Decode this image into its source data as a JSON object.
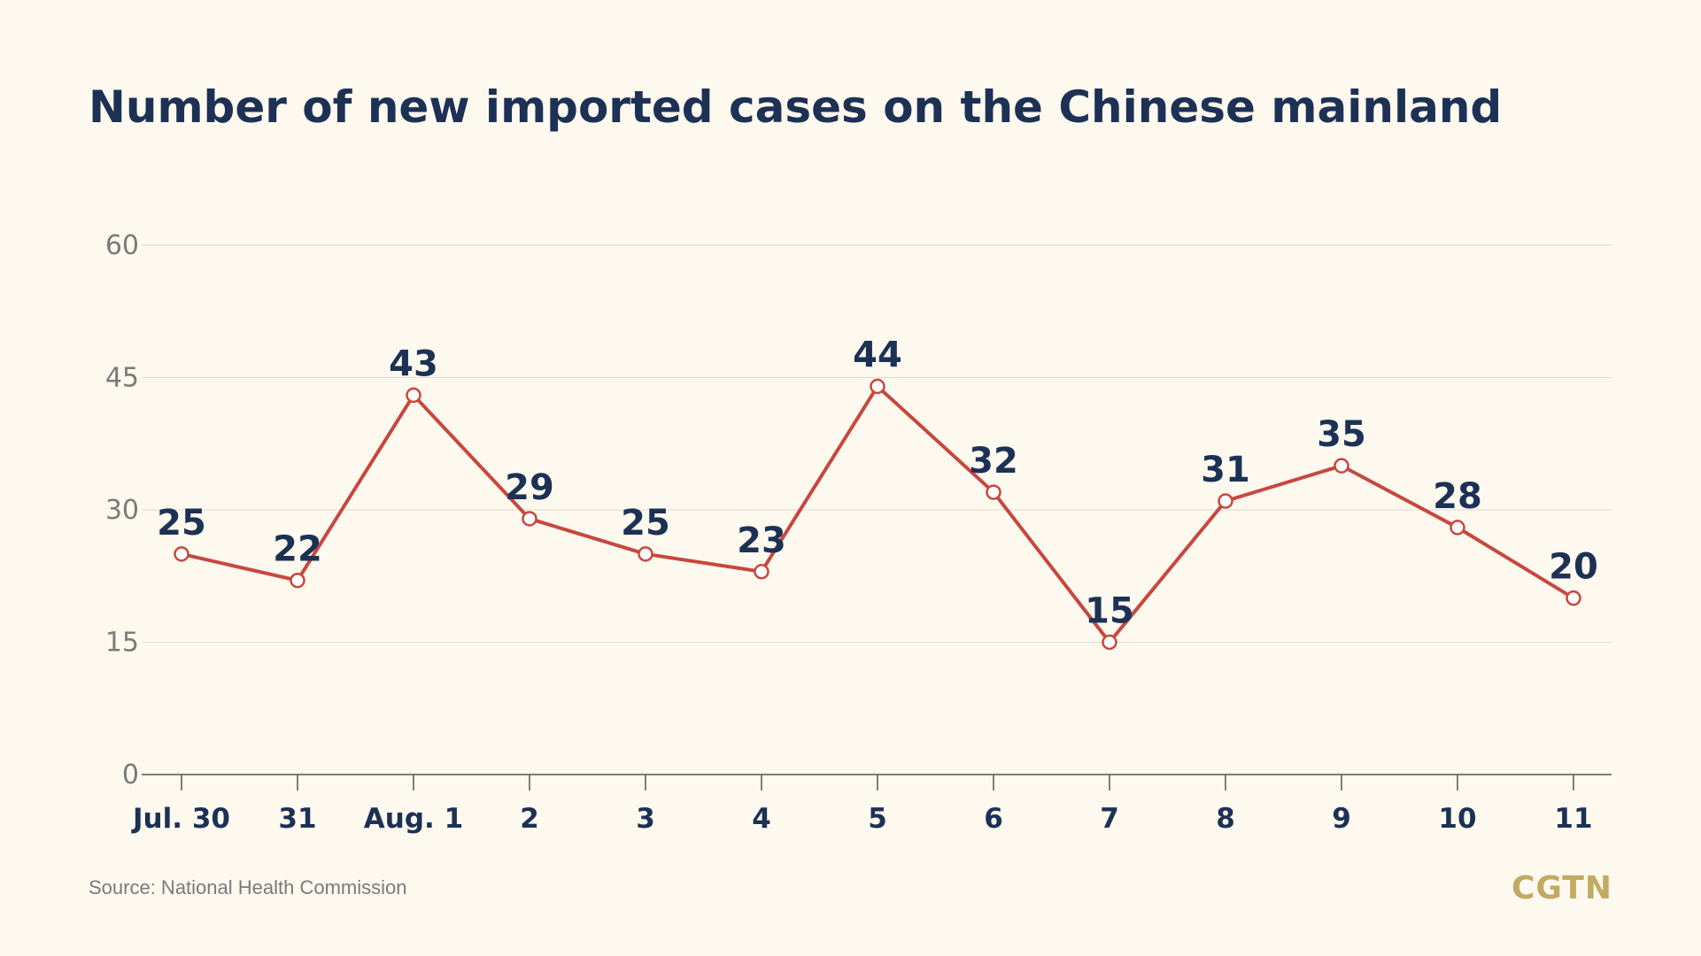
{
  "title": "Number of new imported cases on the Chinese mainland",
  "source": "Source: National Health Commission",
  "logo": "CGTN",
  "colors": {
    "background": "#fdf9ef",
    "line": "#c8473e",
    "title": "#1d3155",
    "label": "#1d3155",
    "axis_tick": "#7a7a7a",
    "grid": "#dcdcd0",
    "logo": "#c2aa62"
  },
  "chart_data": {
    "type": "line",
    "title": "Number of new imported cases on the Chinese mainland",
    "xlabel": "",
    "ylabel": "",
    "categories": [
      "Jul. 30",
      "31",
      "Aug. 1",
      "2",
      "3",
      "4",
      "5",
      "6",
      "7",
      "8",
      "9",
      "10",
      "11"
    ],
    "series": [
      {
        "values": [
          25,
          22,
          43,
          29,
          25,
          23,
          44,
          32,
          15,
          31,
          35,
          28,
          20
        ]
      }
    ],
    "ylim": [
      0,
      60
    ],
    "yticks": [
      0,
      15,
      30,
      45,
      60
    ],
    "grid": true,
    "data_labels": true
  }
}
